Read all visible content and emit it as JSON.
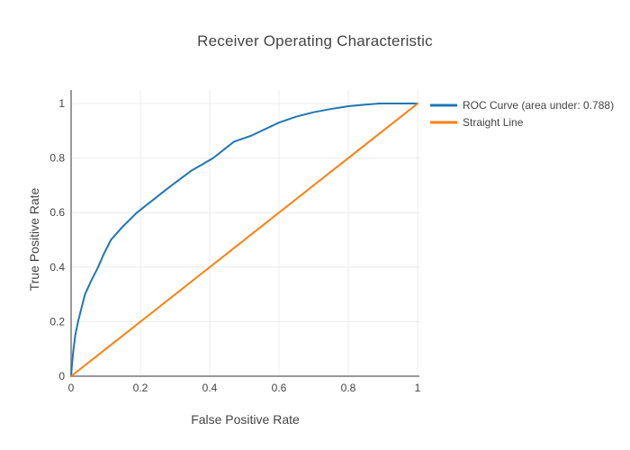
{
  "colors": {
    "background": "#ffffff",
    "grid": "#ececec",
    "axis_line": "#999999",
    "text": "#444444",
    "roc_blue": "#1f77b4",
    "diagonal_orange": "#ff7f0e"
  },
  "chart_data": {
    "type": "line",
    "title": "Receiver Operating Characteristic",
    "xlabel": "False Positive Rate",
    "ylabel": "True Positive Rate",
    "xlim": [
      0,
      1
    ],
    "ylim": [
      0,
      1
    ],
    "grid": true,
    "legend_position": "outside-top-right",
    "auc": 0.788,
    "xticks": [
      {
        "value": 0,
        "label": "0"
      },
      {
        "value": 0.2,
        "label": "0.2"
      },
      {
        "value": 0.4,
        "label": "0.4"
      },
      {
        "value": 0.6,
        "label": "0.6"
      },
      {
        "value": 0.8,
        "label": "0.8"
      },
      {
        "value": 1,
        "label": "1"
      }
    ],
    "yticks": [
      {
        "value": 0,
        "label": "0"
      },
      {
        "value": 0.2,
        "label": "0.2"
      },
      {
        "value": 0.4,
        "label": "0.4"
      },
      {
        "value": 0.6,
        "label": "0.6"
      },
      {
        "value": 0.8,
        "label": "0.8"
      },
      {
        "value": 1,
        "label": "1"
      }
    ],
    "series": [
      {
        "name": "ROC Curve (area under: 0.788)",
        "slug": "roc-curve",
        "color": "#1f77b4",
        "x": [
          0,
          0.003,
          0.007,
          0.012,
          0.02,
          0.03,
          0.04,
          0.058,
          0.078,
          0.095,
          0.115,
          0.15,
          0.19,
          0.24,
          0.28,
          0.345,
          0.41,
          0.47,
          0.52,
          0.6,
          0.65,
          0.7,
          0.75,
          0.8,
          0.85,
          0.89,
          1
        ],
        "y": [
          0,
          0.05,
          0.1,
          0.15,
          0.2,
          0.25,
          0.3,
          0.35,
          0.4,
          0.45,
          0.5,
          0.55,
          0.6,
          0.65,
          0.69,
          0.752,
          0.8,
          0.86,
          0.882,
          0.93,
          0.952,
          0.968,
          0.98,
          0.99,
          0.996,
          1,
          1
        ]
      },
      {
        "name": "Straight Line",
        "slug": "straight-line",
        "color": "#ff7f0e",
        "x": [
          0,
          1
        ],
        "y": [
          0,
          1
        ]
      }
    ]
  }
}
